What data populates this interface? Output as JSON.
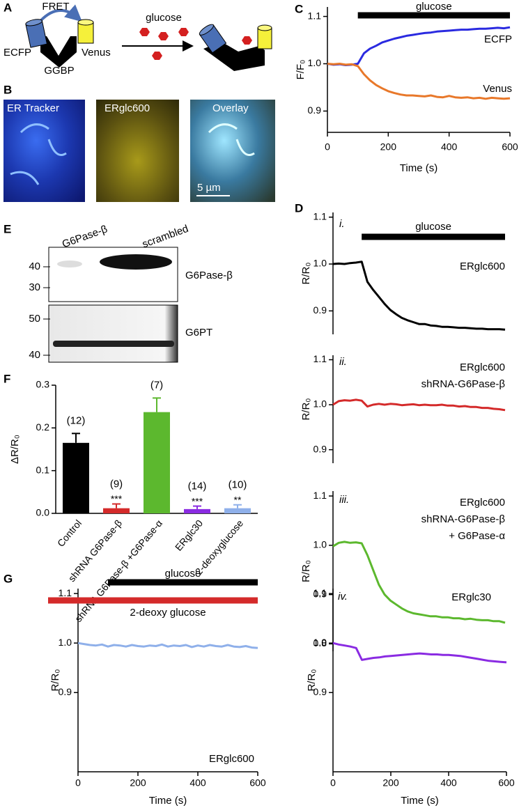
{
  "diagram": {
    "panel": "A",
    "fret": "FRET",
    "ecfp": "ECFP",
    "venus": "Venus",
    "ggbp": "GGBP",
    "glucose": "glucose"
  },
  "images": {
    "panel": "B",
    "panels": [
      "ER Tracker",
      "ERglc600",
      "Overlay"
    ],
    "scale": "5 µm"
  },
  "blot": {
    "panel": "E",
    "lanes": [
      "G6Pase-β",
      "scrambled"
    ],
    "bands": [
      {
        "name": "G6Pase-β",
        "markers": [
          40,
          30
        ]
      },
      {
        "name": "G6PT",
        "markers": [
          50,
          40
        ]
      }
    ]
  },
  "chart_data": [
    {
      "panel": "C",
      "type": "line",
      "ylabel": "F/F₀",
      "xlabel": "Time (s)",
      "x": [
        0,
        20,
        40,
        60,
        80,
        100,
        120,
        140,
        160,
        180,
        200,
        220,
        240,
        260,
        280,
        300,
        320,
        340,
        360,
        380,
        400,
        420,
        440,
        460,
        480,
        500,
        520,
        540,
        560,
        580,
        600
      ],
      "xlim": [
        0,
        600
      ],
      "xticks": [
        0,
        200,
        400,
        600
      ],
      "ylim": [
        0.855,
        1.12
      ],
      "yticks": [
        0.9,
        {
          "value": 1,
          "label": "1.0"
        },
        1.1
      ],
      "bars": [
        {
          "text": "glucose",
          "start": 100,
          "end": 600,
          "color": "#000000"
        }
      ],
      "series": [
        {
          "name": "ECFP",
          "color": "#2a2ae0",
          "values": [
            1.0,
            0.998,
            0.999,
            0.997,
            0.998,
            1.0,
            1.022,
            1.032,
            1.038,
            1.045,
            1.049,
            1.053,
            1.056,
            1.059,
            1.061,
            1.063,
            1.065,
            1.066,
            1.068,
            1.069,
            1.07,
            1.071,
            1.072,
            1.072,
            1.073,
            1.074,
            1.074,
            1.075,
            1.076,
            1.075,
            1.077
          ]
        },
        {
          "name": "Venus",
          "color": "#e8782a",
          "values": [
            1.0,
            0.999,
            1.0,
            0.998,
            0.999,
            0.995,
            0.978,
            0.965,
            0.955,
            0.948,
            0.942,
            0.938,
            0.935,
            0.933,
            0.933,
            0.932,
            0.931,
            0.933,
            0.93,
            0.929,
            0.932,
            0.929,
            0.928,
            0.929,
            0.927,
            0.928,
            0.926,
            0.928,
            0.927,
            0.926,
            0.927
          ]
        }
      ]
    },
    {
      "panel": "D",
      "sub": "i.",
      "type": "line",
      "ylabel": "R/R₀",
      "notes": [
        "ERglc600"
      ],
      "x": [
        0,
        20,
        40,
        60,
        80,
        100,
        120,
        140,
        160,
        180,
        200,
        220,
        240,
        260,
        280,
        300,
        320,
        340,
        360,
        380,
        400,
        420,
        440,
        460,
        480,
        500,
        520,
        540,
        560,
        580,
        600
      ],
      "xlim": [
        0,
        600
      ],
      "ylim": [
        0.85,
        1.11
      ],
      "yticks": [
        0.9,
        {
          "value": 1,
          "label": "1.0"
        },
        1.1
      ],
      "bars": [
        {
          "text": "glucose",
          "start": 100,
          "end": 600,
          "color": "#000000"
        }
      ],
      "series": [
        {
          "color": "#000000",
          "values": [
            1.0,
            1.001,
            1.0,
            1.002,
            1.003,
            1.005,
            0.962,
            0.945,
            0.93,
            0.915,
            0.902,
            0.893,
            0.885,
            0.88,
            0.876,
            0.872,
            0.872,
            0.869,
            0.868,
            0.866,
            0.866,
            0.865,
            0.864,
            0.864,
            0.863,
            0.862,
            0.862,
            0.861,
            0.861,
            0.861,
            0.86
          ]
        }
      ]
    },
    {
      "sub": "ii.",
      "type": "line",
      "ylabel": "R/R₀",
      "notes": [
        "ERglc600",
        "shRNA-G6Pase-β"
      ],
      "x": [
        0,
        20,
        40,
        60,
        80,
        100,
        120,
        140,
        160,
        180,
        200,
        220,
        240,
        260,
        280,
        300,
        320,
        340,
        360,
        380,
        400,
        420,
        440,
        460,
        480,
        500,
        520,
        540,
        560,
        580,
        600
      ],
      "xlim": [
        0,
        600
      ],
      "ylim": [
        0.87,
        1.11
      ],
      "yticks": [
        0.9,
        {
          "value": 1,
          "label": "1.0"
        },
        1.1
      ],
      "series": [
        {
          "color": "#d42a2a",
          "values": [
            1.0,
            1.008,
            1.01,
            1.009,
            1.011,
            1.009,
            0.996,
            1.0,
            1.002,
            1.0,
            1.002,
            1.001,
            0.999,
            1.0,
            1.001,
            0.999,
            1.0,
            0.999,
            0.999,
            1.0,
            0.998,
            0.998,
            0.996,
            0.997,
            0.995,
            0.995,
            0.993,
            0.993,
            0.991,
            0.99,
            0.988
          ]
        }
      ]
    },
    {
      "sub": "iii.",
      "type": "line",
      "ylabel": "R/R₀",
      "notes": [
        "ERglc600",
        "shRNA-G6Pase-β",
        "+ G6Pase-α"
      ],
      "x": [
        0,
        20,
        40,
        60,
        80,
        100,
        120,
        140,
        160,
        180,
        200,
        220,
        240,
        260,
        280,
        300,
        320,
        340,
        360,
        380,
        400,
        420,
        440,
        460,
        480,
        500,
        520,
        540,
        560,
        580,
        600
      ],
      "xlim": [
        0,
        600
      ],
      "ylim": [
        0.785,
        1.11
      ],
      "yticks": [
        0.8,
        0.9,
        {
          "value": 1,
          "label": "1.0"
        },
        1.1
      ],
      "series": [
        {
          "color": "#5cb82e",
          "values": [
            0.998,
            1.005,
            1.007,
            1.005,
            1.006,
            1.004,
            0.98,
            0.95,
            0.92,
            0.9,
            0.888,
            0.88,
            0.872,
            0.866,
            0.862,
            0.86,
            0.858,
            0.856,
            0.856,
            0.854,
            0.854,
            0.852,
            0.852,
            0.85,
            0.851,
            0.849,
            0.848,
            0.848,
            0.846,
            0.846,
            0.843
          ]
        }
      ]
    },
    {
      "sub": "iv.",
      "type": "line",
      "ylabel": "R/R₀",
      "xlabel": "Time (s)",
      "notes": [
        "ERglc30"
      ],
      "x": [
        0,
        20,
        40,
        60,
        80,
        100,
        120,
        140,
        160,
        180,
        200,
        220,
        240,
        260,
        280,
        300,
        320,
        340,
        360,
        380,
        400,
        420,
        440,
        460,
        480,
        500,
        520,
        540,
        560,
        580,
        600
      ],
      "xlim": [
        0,
        600
      ],
      "xticks": [
        0,
        200,
        400,
        600
      ],
      "ylim": [
        0.74,
        1.11
      ],
      "yticks": [
        0.9,
        {
          "value": 1,
          "label": "1.0"
        },
        1.1
      ],
      "series": [
        {
          "color": "#8a2be2",
          "values": [
            1.0,
            0.997,
            0.995,
            0.993,
            0.99,
            0.966,
            0.968,
            0.97,
            0.971,
            0.973,
            0.974,
            0.975,
            0.976,
            0.977,
            0.978,
            0.979,
            0.978,
            0.977,
            0.977,
            0.976,
            0.976,
            0.975,
            0.974,
            0.972,
            0.97,
            0.968,
            0.966,
            0.964,
            0.963,
            0.962,
            0.961
          ]
        }
      ]
    },
    {
      "panel": "F",
      "type": "bar",
      "ylabel": "ΔR/R₀",
      "categories": [
        "Control",
        "shRNA G6Pase-β",
        "shRNA G6Pase-β +G6Pase-α",
        "ERglc30",
        "2-deoxyglucose"
      ],
      "values": [
        0.165,
        0.012,
        0.237,
        0.01,
        0.012
      ],
      "errors": [
        0.022,
        0.01,
        0.033,
        0.007,
        0.008
      ],
      "colors": [
        "#000000",
        "#d42a2a",
        "#5cb82e",
        "#8a2be2",
        "#8fb0ea"
      ],
      "n_labels": [
        "(12)",
        "(9)",
        "(7)",
        "(14)",
        "(10)"
      ],
      "significance": [
        null,
        "***",
        null,
        "***",
        "**"
      ],
      "ylim": [
        0,
        0.3
      ],
      "yticks": [
        {
          "value": 0,
          "label": "0.0"
        },
        0.1,
        0.2,
        0.3
      ]
    },
    {
      "panel": "G",
      "type": "line",
      "ylabel": "R/R₀",
      "xlabel": "Time (s)",
      "notes": [
        "ERglc600"
      ],
      "x": [
        0,
        20,
        40,
        60,
        80,
        100,
        120,
        140,
        160,
        180,
        200,
        220,
        240,
        260,
        280,
        300,
        320,
        340,
        360,
        380,
        400,
        420,
        440,
        460,
        480,
        500,
        520,
        540,
        560,
        580,
        600
      ],
      "xlim": [
        0,
        600
      ],
      "xticks": [
        0,
        200,
        400,
        600
      ],
      "ylim": [
        0.74,
        1.11
      ],
      "yticks": [
        0.9,
        {
          "value": 1,
          "label": "1.0"
        },
        1.1
      ],
      "bars": [
        {
          "text": "glucose",
          "start": 100,
          "end": 600,
          "color": "#000000"
        },
        {
          "text": "2-deoxy glucose",
          "start": -100,
          "end": 600,
          "color": "#d42a2a"
        }
      ],
      "series": [
        {
          "color": "#8fb0ea",
          "values": [
            1.0,
            0.998,
            0.996,
            0.995,
            0.997,
            0.993,
            0.996,
            0.995,
            0.993,
            0.996,
            0.994,
            0.993,
            0.995,
            0.994,
            0.997,
            0.993,
            0.995,
            0.994,
            0.996,
            0.992,
            0.995,
            0.993,
            0.996,
            0.994,
            0.993,
            0.996,
            0.993,
            0.992,
            0.994,
            0.991,
            0.99
          ]
        }
      ]
    }
  ]
}
